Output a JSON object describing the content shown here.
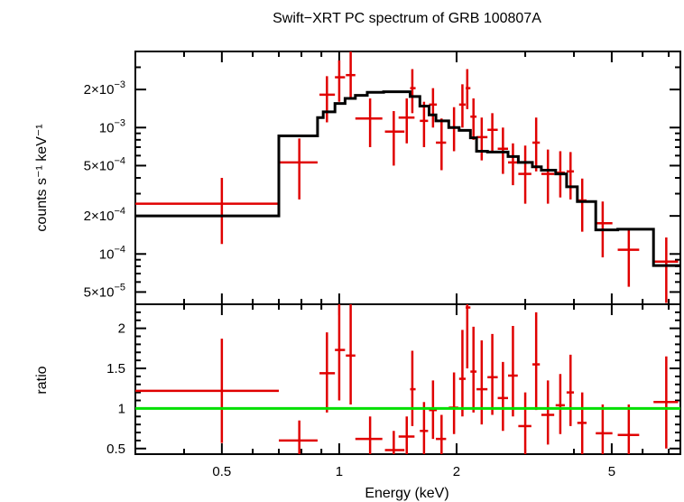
{
  "chart_data": {
    "type": "scatter",
    "title": "Swift−XRT PC spectrum of GRB 100807A",
    "xlabel": "Energy (keV)",
    "x_scale": "log",
    "xlim": [
      0.3,
      7.5
    ],
    "x_ticks": [
      0.5,
      1,
      2,
      5
    ],
    "x_tick_labels": [
      "0.5",
      "1",
      "2",
      "5"
    ],
    "panels": [
      {
        "id": "spectrum",
        "ylabel": "counts s⁻¹ keV⁻¹",
        "y_scale": "log",
        "ylim": [
          4e-05,
          0.004
        ],
        "y_ticks": [
          5e-05,
          0.0001,
          0.0002,
          0.0005,
          0.001,
          0.002
        ],
        "y_tick_labels": [
          {
            "mant": "5×10",
            "exp": "−5"
          },
          {
            "mant": "10",
            "exp": "−4"
          },
          {
            "mant": "2×10",
            "exp": "−4"
          },
          {
            "mant": "5×10",
            "exp": "−4"
          },
          {
            "mant": "10",
            "exp": "−3"
          },
          {
            "mant": "2×10",
            "exp": "−3"
          }
        ],
        "series": [
          {
            "role": "data",
            "color": "#e00000",
            "points": [
              {
                "x": 0.5,
                "xlo": 0.3,
                "xhi": 0.7,
                "y": 0.00025,
                "ylo": 0.00012,
                "yhi": 0.0004
              },
              {
                "x": 0.79,
                "xlo": 0.7,
                "xhi": 0.88,
                "y": 0.00053,
                "ylo": 0.00027,
                "yhi": 0.00082
              },
              {
                "x": 0.93,
                "xlo": 0.89,
                "xhi": 0.975,
                "y": 0.00182,
                "ylo": 0.0011,
                "yhi": 0.00255
              },
              {
                "x": 1.0,
                "xlo": 0.975,
                "xhi": 1.035,
                "y": 0.0025,
                "ylo": 0.0016,
                "yhi": 0.0034
              },
              {
                "x": 1.07,
                "xlo": 1.04,
                "xhi": 1.1,
                "y": 0.0026,
                "ylo": 0.0017,
                "yhi": 0.004
              },
              {
                "x": 1.2,
                "xlo": 1.1,
                "xhi": 1.29,
                "y": 0.00118,
                "ylo": 0.0007,
                "yhi": 0.0017
              },
              {
                "x": 1.38,
                "xlo": 1.31,
                "xhi": 1.47,
                "y": 0.00093,
                "ylo": 0.0005,
                "yhi": 0.00135
              },
              {
                "x": 1.49,
                "xlo": 1.42,
                "xhi": 1.56,
                "y": 0.0012,
                "ylo": 0.00075,
                "yhi": 0.0017
              },
              {
                "x": 1.54,
                "xlo": 1.52,
                "xhi": 1.57,
                "y": 0.00205,
                "ylo": 0.0013,
                "yhi": 0.0029
              },
              {
                "x": 1.65,
                "xlo": 1.61,
                "xhi": 1.69,
                "y": 0.00113,
                "ylo": 0.0007,
                "yhi": 0.0016
              },
              {
                "x": 1.74,
                "xlo": 1.7,
                "xhi": 1.78,
                "y": 0.00152,
                "ylo": 0.001,
                "yhi": 0.00205
              },
              {
                "x": 1.83,
                "xlo": 1.77,
                "xhi": 1.88,
                "y": 0.00076,
                "ylo": 0.00046,
                "yhi": 0.00118
              },
              {
                "x": 1.97,
                "xlo": 1.91,
                "xhi": 2.02,
                "y": 0.001,
                "ylo": 0.00065,
                "yhi": 0.00145
              },
              {
                "x": 2.07,
                "xlo": 2.03,
                "xhi": 2.11,
                "y": 0.00152,
                "ylo": 0.001,
                "yhi": 0.0022
              },
              {
                "x": 2.13,
                "xlo": 2.11,
                "xhi": 2.17,
                "y": 0.00205,
                "ylo": 0.0014,
                "yhi": 0.0029
              },
              {
                "x": 2.21,
                "xlo": 2.17,
                "xhi": 2.25,
                "y": 0.00122,
                "ylo": 0.0008,
                "yhi": 0.0017
              },
              {
                "x": 2.32,
                "xlo": 2.25,
                "xhi": 2.4,
                "y": 0.00084,
                "ylo": 0.00055,
                "yhi": 0.0012
              },
              {
                "x": 2.47,
                "xlo": 2.4,
                "xhi": 2.55,
                "y": 0.00096,
                "ylo": 0.00065,
                "yhi": 0.0013
              },
              {
                "x": 2.63,
                "xlo": 2.55,
                "xhi": 2.71,
                "y": 0.00068,
                "ylo": 0.00043,
                "yhi": 0.001
              },
              {
                "x": 2.79,
                "xlo": 2.71,
                "xhi": 2.87,
                "y": 0.00053,
                "ylo": 0.00035,
                "yhi": 0.00075
              },
              {
                "x": 3.0,
                "xlo": 2.88,
                "xhi": 3.11,
                "y": 0.00043,
                "ylo": 0.00025,
                "yhi": 0.00072
              },
              {
                "x": 3.2,
                "xlo": 3.13,
                "xhi": 3.27,
                "y": 0.00076,
                "ylo": 0.00045,
                "yhi": 0.0012
              },
              {
                "x": 3.43,
                "xlo": 3.3,
                "xhi": 3.56,
                "y": 0.00043,
                "ylo": 0.00025,
                "yhi": 0.00067
              },
              {
                "x": 3.69,
                "xlo": 3.59,
                "xhi": 3.79,
                "y": 0.00044,
                "ylo": 0.00028,
                "yhi": 0.00065
              },
              {
                "x": 3.92,
                "xlo": 3.83,
                "xhi": 4.0,
                "y": 0.00045,
                "ylo": 0.00027,
                "yhi": 0.00064
              },
              {
                "x": 4.2,
                "xlo": 4.08,
                "xhi": 4.31,
                "y": 0.000265,
                "ylo": 0.00015,
                "yhi": 0.000395
              },
              {
                "x": 4.74,
                "xlo": 4.55,
                "xhi": 5.02,
                "y": 0.000175,
                "ylo": 9.4e-05,
                "yhi": 0.00026
              },
              {
                "x": 5.53,
                "xlo": 5.18,
                "xhi": 5.88,
                "y": 0.000108,
                "ylo": 5.5e-05,
                "yhi": 0.00016
              },
              {
                "x": 6.9,
                "xlo": 6.4,
                "xhi": 7.4,
                "y": 8.7e-05,
                "ylo": 4.1e-05,
                "yhi": 0.000135
              }
            ]
          },
          {
            "role": "model",
            "color": "#000000",
            "steps": [
              {
                "x0": 0.3,
                "x1": 0.7,
                "y": 0.0002
              },
              {
                "x0": 0.7,
                "x1": 0.88,
                "y": 0.00086
              },
              {
                "x0": 0.88,
                "x1": 0.91,
                "y": 0.0012
              },
              {
                "x0": 0.91,
                "x1": 0.975,
                "y": 0.00133
              },
              {
                "x0": 0.975,
                "x1": 1.035,
                "y": 0.00155
              },
              {
                "x0": 1.035,
                "x1": 1.1,
                "y": 0.0017
              },
              {
                "x0": 1.1,
                "x1": 1.18,
                "y": 0.0018
              },
              {
                "x0": 1.18,
                "x1": 1.3,
                "y": 0.0019
              },
              {
                "x0": 1.3,
                "x1": 1.52,
                "y": 0.00192
              },
              {
                "x0": 1.52,
                "x1": 1.61,
                "y": 0.00176
              },
              {
                "x0": 1.61,
                "x1": 1.7,
                "y": 0.00148
              },
              {
                "x0": 1.7,
                "x1": 1.77,
                "y": 0.00126
              },
              {
                "x0": 1.77,
                "x1": 1.91,
                "y": 0.00113
              },
              {
                "x0": 1.91,
                "x1": 2.03,
                "y": 0.001
              },
              {
                "x0": 2.03,
                "x1": 2.17,
                "y": 0.00095
              },
              {
                "x0": 2.17,
                "x1": 2.25,
                "y": 0.00083
              },
              {
                "x0": 2.25,
                "x1": 2.4,
                "y": 0.00065
              },
              {
                "x0": 2.4,
                "x1": 2.71,
                "y": 0.00064
              },
              {
                "x0": 2.71,
                "x1": 2.88,
                "y": 0.00059
              },
              {
                "x0": 2.88,
                "x1": 3.13,
                "y": 0.00053
              },
              {
                "x0": 3.13,
                "x1": 3.3,
                "y": 0.00049
              },
              {
                "x0": 3.3,
                "x1": 3.59,
                "y": 0.00046
              },
              {
                "x0": 3.59,
                "x1": 3.83,
                "y": 0.00043
              },
              {
                "x0": 3.83,
                "x1": 4.08,
                "y": 0.00034
              },
              {
                "x0": 4.08,
                "x1": 4.55,
                "y": 0.00026
              },
              {
                "x0": 4.55,
                "x1": 5.18,
                "y": 0.000155
              },
              {
                "x0": 5.18,
                "x1": 6.4,
                "y": 0.000157
              },
              {
                "x0": 6.4,
                "x1": 7.5,
                "y": 8.1e-05
              }
            ]
          }
        ]
      },
      {
        "id": "ratio",
        "ylabel": "ratio",
        "y_scale": "linear",
        "ylim": [
          0.43,
          2.3
        ],
        "y_ticks": [
          0.5,
          1,
          1.5,
          2
        ],
        "y_tick_labels": [
          "0.5",
          "1",
          "1.5",
          "2"
        ],
        "series": [
          {
            "role": "data",
            "color": "#e00000",
            "points": [
              {
                "x": 0.5,
                "xlo": 0.3,
                "xhi": 0.7,
                "y": 1.22,
                "ylo": 0.57,
                "yhi": 1.87
              },
              {
                "x": 0.79,
                "xlo": 0.7,
                "xhi": 0.88,
                "y": 0.6,
                "ylo": 0.43,
                "yhi": 0.85
              },
              {
                "x": 0.93,
                "xlo": 0.89,
                "xhi": 0.975,
                "y": 1.44,
                "ylo": 0.95,
                "yhi": 1.95
              },
              {
                "x": 1.0,
                "xlo": 0.975,
                "xhi": 1.035,
                "y": 1.73,
                "ylo": 1.1,
                "yhi": 2.3
              },
              {
                "x": 1.07,
                "xlo": 1.04,
                "xhi": 1.1,
                "y": 1.66,
                "ylo": 1.05,
                "yhi": 2.3
              },
              {
                "x": 1.2,
                "xlo": 1.1,
                "xhi": 1.29,
                "y": 0.62,
                "ylo": 0.43,
                "yhi": 0.9
              },
              {
                "x": 1.38,
                "xlo": 1.31,
                "xhi": 1.47,
                "y": 0.48,
                "ylo": 0.43,
                "yhi": 0.72
              },
              {
                "x": 1.49,
                "xlo": 1.42,
                "xhi": 1.56,
                "y": 0.65,
                "ylo": 0.43,
                "yhi": 0.9
              },
              {
                "x": 1.54,
                "xlo": 1.52,
                "xhi": 1.57,
                "y": 1.24,
                "ylo": 0.78,
                "yhi": 1.72
              },
              {
                "x": 1.65,
                "xlo": 1.61,
                "xhi": 1.69,
                "y": 0.72,
                "ylo": 0.43,
                "yhi": 1.08
              },
              {
                "x": 1.74,
                "xlo": 1.7,
                "xhi": 1.78,
                "y": 0.98,
                "ylo": 0.62,
                "yhi": 1.35
              },
              {
                "x": 1.83,
                "xlo": 1.77,
                "xhi": 1.88,
                "y": 0.62,
                "ylo": 0.43,
                "yhi": 0.92
              },
              {
                "x": 1.97,
                "xlo": 1.91,
                "xhi": 2.02,
                "y": 1.01,
                "ylo": 0.68,
                "yhi": 1.45
              },
              {
                "x": 2.07,
                "xlo": 2.03,
                "xhi": 2.11,
                "y": 1.37,
                "ylo": 0.9,
                "yhi": 1.98
              },
              {
                "x": 2.13,
                "xlo": 2.11,
                "xhi": 2.17,
                "y": 2.26,
                "ylo": 1.5,
                "yhi": 2.3
              },
              {
                "x": 2.21,
                "xlo": 2.17,
                "xhi": 2.25,
                "y": 1.46,
                "ylo": 0.95,
                "yhi": 2.02
              },
              {
                "x": 2.32,
                "xlo": 2.25,
                "xhi": 2.4,
                "y": 1.24,
                "ylo": 0.8,
                "yhi": 1.85
              },
              {
                "x": 2.47,
                "xlo": 2.4,
                "xhi": 2.55,
                "y": 1.39,
                "ylo": 0.92,
                "yhi": 1.93
              },
              {
                "x": 2.63,
                "xlo": 2.55,
                "xhi": 2.71,
                "y": 1.13,
                "ylo": 0.72,
                "yhi": 1.58
              },
              {
                "x": 2.79,
                "xlo": 2.71,
                "xhi": 2.87,
                "y": 1.41,
                "ylo": 0.9,
                "yhi": 2.03
              },
              {
                "x": 3.0,
                "xlo": 2.88,
                "xhi": 3.11,
                "y": 0.78,
                "ylo": 0.43,
                "yhi": 1.2
              },
              {
                "x": 3.2,
                "xlo": 3.13,
                "xhi": 3.27,
                "y": 1.55,
                "ylo": 0.98,
                "yhi": 2.2
              },
              {
                "x": 3.43,
                "xlo": 3.3,
                "xhi": 3.56,
                "y": 0.92,
                "ylo": 0.55,
                "yhi": 1.35
              },
              {
                "x": 3.69,
                "xlo": 3.59,
                "xhi": 3.79,
                "y": 1.04,
                "ylo": 0.68,
                "yhi": 1.43
              },
              {
                "x": 3.92,
                "xlo": 3.83,
                "xhi": 4.0,
                "y": 1.2,
                "ylo": 0.78,
                "yhi": 1.67
              },
              {
                "x": 4.2,
                "xlo": 4.08,
                "xhi": 4.31,
                "y": 0.82,
                "ylo": 0.43,
                "yhi": 1.2
              },
              {
                "x": 4.74,
                "xlo": 4.55,
                "xhi": 5.02,
                "y": 0.69,
                "ylo": 0.43,
                "yhi": 1.05
              },
              {
                "x": 5.53,
                "xlo": 5.18,
                "xhi": 5.88,
                "y": 0.67,
                "ylo": 0.43,
                "yhi": 1.05
              },
              {
                "x": 6.9,
                "xlo": 6.4,
                "xhi": 7.4,
                "y": 1.08,
                "ylo": 0.5,
                "yhi": 1.65
              }
            ]
          },
          {
            "role": "reference",
            "color": "#00e000",
            "y": 1.0
          }
        ]
      }
    ]
  }
}
